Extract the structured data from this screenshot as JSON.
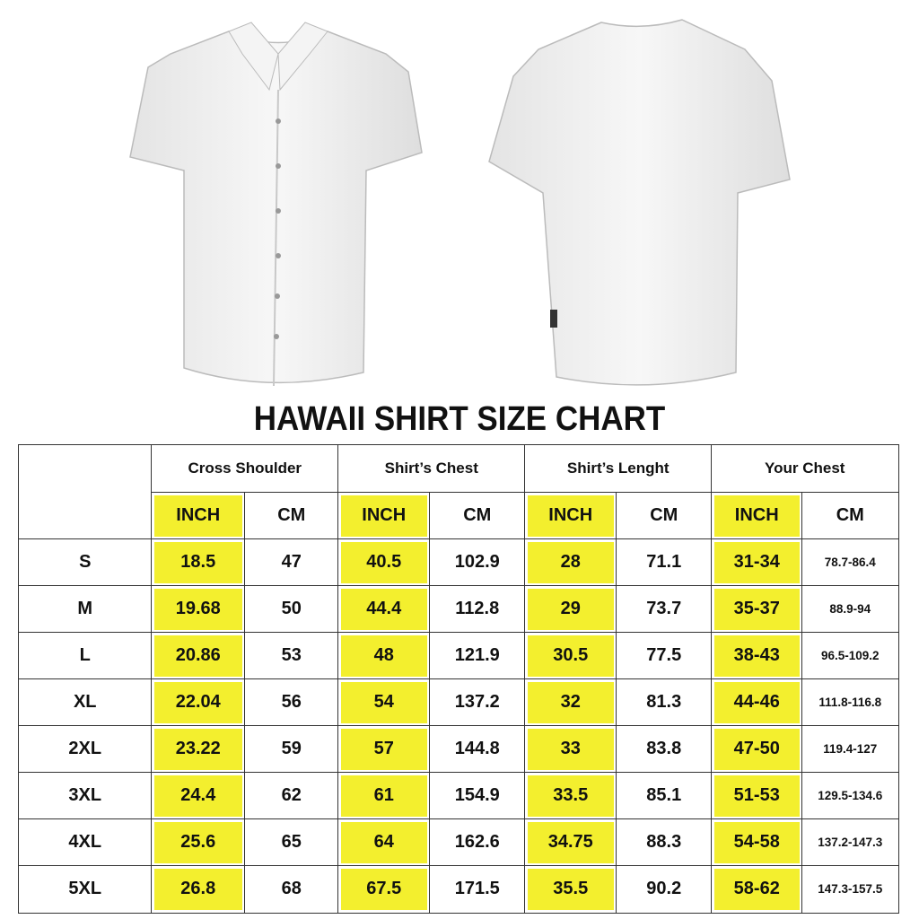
{
  "title": "HAWAII SHIRT SIZE CHART",
  "table": {
    "groups": [
      "Cross Shoulder",
      "Shirt’s Chest",
      "Shirt’s Lenght",
      "Your Chest"
    ],
    "units": [
      "INCH",
      "CM",
      "INCH",
      "CM",
      "INCH",
      "CM",
      "INCH",
      "CM"
    ],
    "rows": [
      [
        "S",
        "18.5",
        "47",
        "40.5",
        "102.9",
        "28",
        "71.1",
        "31-34",
        "78.7-86.4"
      ],
      [
        "M",
        "19.68",
        "50",
        "44.4",
        "112.8",
        "29",
        "73.7",
        "35-37",
        "88.9-94"
      ],
      [
        "L",
        "20.86",
        "53",
        "48",
        "121.9",
        "30.5",
        "77.5",
        "38-43",
        "96.5-109.2"
      ],
      [
        "XL",
        "22.04",
        "56",
        "54",
        "137.2",
        "32",
        "81.3",
        "44-46",
        "111.8-116.8"
      ],
      [
        "2XL",
        "23.22",
        "59",
        "57",
        "144.8",
        "33",
        "83.8",
        "47-50",
        "119.4-127"
      ],
      [
        "3XL",
        "24.4",
        "62",
        "61",
        "154.9",
        "33.5",
        "85.1",
        "51-53",
        "129.5-134.6"
      ],
      [
        "4XL",
        "25.6",
        "65",
        "64",
        "162.6",
        "34.75",
        "88.3",
        "54-58",
        "137.2-147.3"
      ],
      [
        "5XL",
        "26.8",
        "68",
        "67.5",
        "171.5",
        "35.5",
        "90.2",
        "58-62",
        "147.3-157.5"
      ]
    ]
  }
}
